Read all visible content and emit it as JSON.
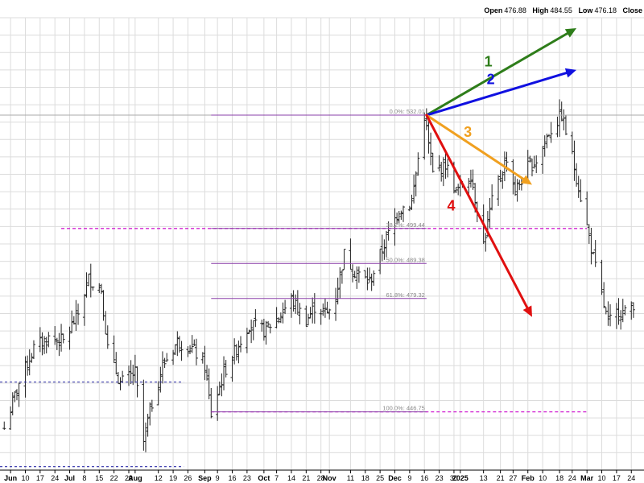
{
  "header": {
    "open_label": "Open",
    "open_value": "476.88",
    "high_label": "High",
    "high_value": "484.55",
    "low_label": "Low",
    "low_value": "476.18",
    "close_label": "Close"
  },
  "chart_data": {
    "type": "ohlc",
    "price_range": [
      430,
      560
    ],
    "date_range": [
      "2024-05-29",
      "2025-03-30"
    ],
    "grid": true,
    "x_ticks": [
      {
        "date": "2024-06-03",
        "label": "Jun",
        "major": true
      },
      {
        "date": "2024-06-10",
        "label": "10"
      },
      {
        "date": "2024-06-17",
        "label": "17"
      },
      {
        "date": "2024-06-24",
        "label": "24"
      },
      {
        "date": "2024-07-01",
        "label": "Jul",
        "major": true
      },
      {
        "date": "2024-07-08",
        "label": "8"
      },
      {
        "date": "2024-07-15",
        "label": "15"
      },
      {
        "date": "2024-07-22",
        "label": "22"
      },
      {
        "date": "2024-07-29",
        "label": "29"
      },
      {
        "date": "2024-08-01",
        "label": "Aug",
        "major": true
      },
      {
        "date": "2024-08-12",
        "label": "12"
      },
      {
        "date": "2024-08-19",
        "label": "19"
      },
      {
        "date": "2024-08-26",
        "label": "26"
      },
      {
        "date": "2024-09-03",
        "label": "Sep",
        "major": true
      },
      {
        "date": "2024-09-09",
        "label": "9"
      },
      {
        "date": "2024-09-16",
        "label": "16"
      },
      {
        "date": "2024-09-23",
        "label": "23"
      },
      {
        "date": "2024-10-01",
        "label": "Oct",
        "major": true
      },
      {
        "date": "2024-10-07",
        "label": "7"
      },
      {
        "date": "2024-10-14",
        "label": "14"
      },
      {
        "date": "2024-10-21",
        "label": "21"
      },
      {
        "date": "2024-10-28",
        "label": "28"
      },
      {
        "date": "2024-11-01",
        "label": "Nov",
        "major": true
      },
      {
        "date": "2024-11-11",
        "label": "11"
      },
      {
        "date": "2024-11-18",
        "label": "18"
      },
      {
        "date": "2024-11-25",
        "label": "25"
      },
      {
        "date": "2024-12-02",
        "label": "Dec",
        "major": true
      },
      {
        "date": "2024-12-09",
        "label": "9"
      },
      {
        "date": "2024-12-16",
        "label": "16"
      },
      {
        "date": "2024-12-23",
        "label": "23"
      },
      {
        "date": "2024-12-30",
        "label": "30"
      },
      {
        "date": "2025-01-02",
        "label": "2025",
        "major": true
      },
      {
        "date": "2025-01-13",
        "label": "13"
      },
      {
        "date": "2025-01-21",
        "label": "21"
      },
      {
        "date": "2025-01-27",
        "label": "27"
      },
      {
        "date": "2025-02-03",
        "label": "Feb",
        "major": true
      },
      {
        "date": "2025-02-10",
        "label": "10"
      },
      {
        "date": "2025-02-18",
        "label": "18"
      },
      {
        "date": "2025-02-24",
        "label": "24"
      },
      {
        "date": "2025-03-03",
        "label": "Mar",
        "major": true
      },
      {
        "date": "2025-03-10",
        "label": "10"
      },
      {
        "date": "2025-03-17",
        "label": "17"
      },
      {
        "date": "2025-03-24",
        "label": "24"
      }
    ],
    "price_path": [
      [
        "2024-05-31",
        442
      ],
      [
        "2024-06-07",
        455
      ],
      [
        "2024-06-14",
        465
      ],
      [
        "2024-06-21",
        468
      ],
      [
        "2024-06-28",
        467
      ],
      [
        "2024-07-05",
        475
      ],
      [
        "2024-07-10",
        485
      ],
      [
        "2024-07-16",
        482
      ],
      [
        "2024-07-19",
        465
      ],
      [
        "2024-07-25",
        455
      ],
      [
        "2024-08-01",
        458
      ],
      [
        "2024-08-05",
        438
      ],
      [
        "2024-08-08",
        447
      ],
      [
        "2024-08-14",
        460
      ],
      [
        "2024-08-21",
        467
      ],
      [
        "2024-08-28",
        465
      ],
      [
        "2024-09-03",
        460
      ],
      [
        "2024-09-06",
        446
      ],
      [
        "2024-09-12",
        458
      ],
      [
        "2024-09-18",
        465
      ],
      [
        "2024-09-24",
        472
      ],
      [
        "2024-10-01",
        470
      ],
      [
        "2024-10-08",
        474
      ],
      [
        "2024-10-14",
        479
      ],
      [
        "2024-10-21",
        473
      ],
      [
        "2024-10-25",
        477
      ],
      [
        "2024-10-31",
        475
      ],
      [
        "2024-11-04",
        480
      ],
      [
        "2024-11-08",
        492
      ],
      [
        "2024-11-13",
        487
      ],
      [
        "2024-11-20",
        484
      ],
      [
        "2024-11-27",
        495
      ],
      [
        "2024-12-04",
        505
      ],
      [
        "2024-12-10",
        507
      ],
      [
        "2024-12-16",
        532
      ],
      [
        "2024-12-20",
        515
      ],
      [
        "2024-12-26",
        518
      ],
      [
        "2024-12-31",
        510
      ],
      [
        "2025-01-07",
        515
      ],
      [
        "2025-01-13",
        495
      ],
      [
        "2025-01-17",
        507
      ],
      [
        "2025-01-24",
        520
      ],
      [
        "2025-01-28",
        510
      ],
      [
        "2025-02-03",
        517
      ],
      [
        "2025-02-07",
        519
      ],
      [
        "2025-02-13",
        527
      ],
      [
        "2025-02-19",
        532
      ],
      [
        "2025-02-24",
        520
      ],
      [
        "2025-03-03",
        500
      ],
      [
        "2025-03-07",
        488
      ],
      [
        "2025-03-13",
        472
      ],
      [
        "2025-03-18",
        476
      ],
      [
        "2025-03-21",
        475
      ],
      [
        "2025-03-25",
        478
      ]
    ],
    "horizontal_lines": [
      {
        "price": 499.44,
        "from": "2024-06-27",
        "to": "2025-03-03",
        "style": "magenta-dashed"
      },
      {
        "price": 446.75,
        "from": "2024-09-06",
        "to": "2025-03-03",
        "style": "magenta-dashed"
      },
      {
        "price": 532.01,
        "from": "2024-09-06",
        "to": "2025-03-03",
        "style": "purple-solid"
      },
      {
        "price": 532.01,
        "from": "2024-05-29",
        "to": "2025-03-30",
        "style": "gray-solid"
      },
      {
        "price": 455.3,
        "from": "2024-05-29",
        "to": "2024-08-24",
        "style": "blue-dashed"
      },
      {
        "price": 431.0,
        "from": "2024-05-29",
        "to": "2024-08-24",
        "style": "blue-dashed"
      }
    ],
    "fib_levels": [
      {
        "label": "0.0%: 532.01",
        "price": 532.01
      },
      {
        "label": "38.2%: 499.44",
        "price": 499.44
      },
      {
        "label": "50.0%: 489.38",
        "price": 489.38
      },
      {
        "label": "61.8%: 479.32",
        "price": 479.32
      },
      {
        "label": "100.0%: 446.75",
        "price": 446.75
      }
    ],
    "fib_range": [
      "2024-09-06",
      "2024-12-17"
    ],
    "arrow_origin": {
      "date": "2024-12-17",
      "price": 532.01
    },
    "arrows": [
      {
        "label": "1",
        "color": "#2e7d1a",
        "end_date": "2025-02-26",
        "end_price": 557
      },
      {
        "label": "2",
        "color": "#1010e0",
        "end_date": "2025-02-26",
        "end_price": 545
      },
      {
        "label": "3",
        "color": "#f0a020",
        "end_date": "2025-02-05",
        "end_price": 512
      },
      {
        "label": "4",
        "color": "#e01010",
        "end_date": "2025-02-05",
        "end_price": 474
      }
    ]
  }
}
